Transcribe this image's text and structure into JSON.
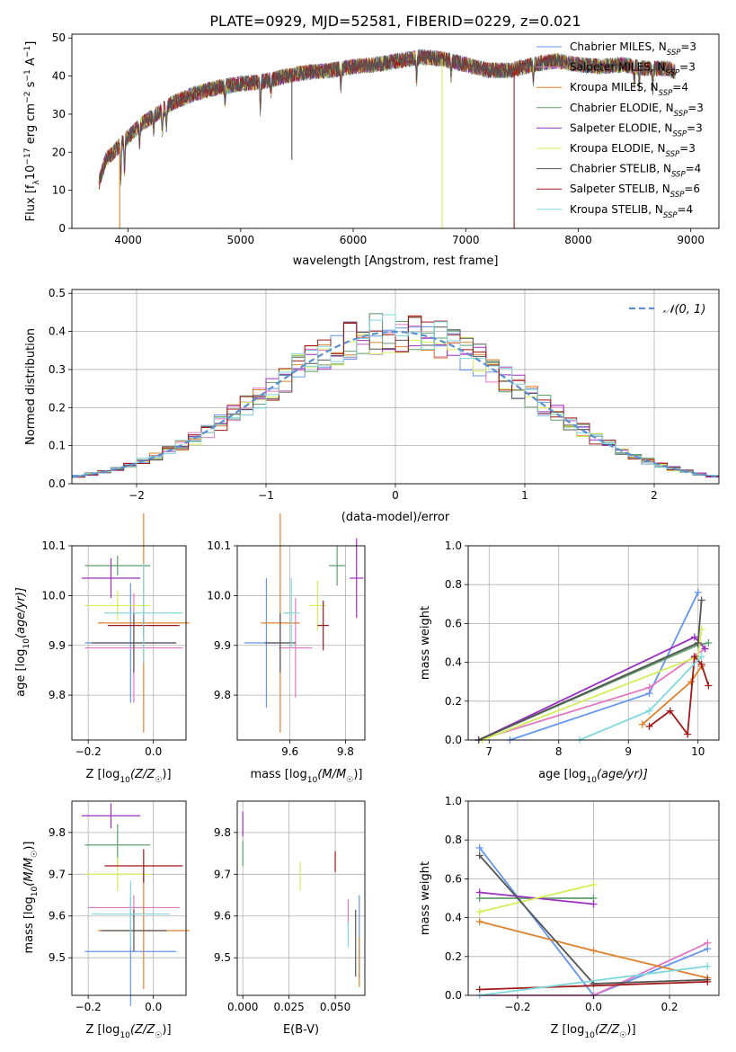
{
  "page_title": "PLATE=0929, MJD=52581, FIBERID=0229, z=0.021",
  "colors": {
    "chabrier_miles": "#6495ED",
    "salpeter_miles": "#E377C2",
    "kroupa_miles": "#E0812C",
    "chabrier_elodie": "#5F9F6B",
    "salpeter_elodie": "#9B30C0",
    "kroupa_elodie": "#D4EE58",
    "chabrier_stelib": "#555555",
    "salpeter_stelib": "#A01818",
    "kroupa_stelib": "#80D8DC",
    "normal": "#5B8FD0"
  },
  "legend": {
    "series": [
      {
        "name": "Chabrier MILES, N",
        "sub": "SSP",
        "tail": "=3",
        "color_key": "chabrier_miles"
      },
      {
        "name": "Salpeter MILES, N",
        "sub": "SSP",
        "tail": "=3",
        "color_key": "salpeter_miles"
      },
      {
        "name": "Kroupa MILES, N",
        "sub": "SSP",
        "tail": "=4",
        "color_key": "kroupa_miles"
      },
      {
        "name": "Chabrier ELODIE, N",
        "sub": "SSP",
        "tail": "=3",
        "color_key": "chabrier_elodie"
      },
      {
        "name": "Salpeter ELODIE, N",
        "sub": "SSP",
        "tail": "=3",
        "color_key": "salpeter_elodie"
      },
      {
        "name": "Kroupa ELODIE, N",
        "sub": "SSP",
        "tail": "=3",
        "color_key": "kroupa_elodie"
      },
      {
        "name": "Chabrier STELIB, N",
        "sub": "SSP",
        "tail": "=4",
        "color_key": "chabrier_stelib"
      },
      {
        "name": "Salpeter STELIB, N",
        "sub": "SSP",
        "tail": "=6",
        "color_key": "salpeter_stelib"
      },
      {
        "name": "Kroupa STELIB, N",
        "sub": "SSP",
        "tail": "=4",
        "color_key": "kroupa_stelib"
      }
    ],
    "normal_label": "𝒩(0, 1)"
  },
  "chart_data": [
    {
      "id": "spectrum",
      "type": "line",
      "xlabel": "wavelength [Angstrom, rest frame]",
      "ylabel": {
        "a": "Flux [f",
        "b": "λ",
        "c": "10",
        "d": "−17",
        "e": " erg cm",
        "f": "−2",
        "g": " s",
        "h": "−1",
        "i": " A",
        "j": "−1",
        "k": "]"
      },
      "xlim": [
        3500,
        9250
      ],
      "ylim": [
        0,
        51
      ],
      "xticks": [
        4000,
        5000,
        6000,
        7000,
        8000,
        9000
      ],
      "yticks": [
        0,
        10,
        20,
        30,
        40,
        50
      ],
      "continuum": [
        [
          3740,
          12
        ],
        [
          3800,
          18
        ],
        [
          3900,
          21
        ],
        [
          4000,
          24
        ],
        [
          4100,
          27
        ],
        [
          4200,
          29
        ],
        [
          4300,
          31
        ],
        [
          4400,
          33
        ],
        [
          4600,
          35.5
        ],
        [
          4800,
          37
        ],
        [
          5000,
          38
        ],
        [
          5200,
          38.5
        ],
        [
          5400,
          40
        ],
        [
          5600,
          41
        ],
        [
          5800,
          41.5
        ],
        [
          6000,
          42.5
        ],
        [
          6200,
          43
        ],
        [
          6400,
          44
        ],
        [
          6600,
          45
        ],
        [
          6800,
          44.5
        ],
        [
          7000,
          43
        ],
        [
          7200,
          41.5
        ],
        [
          7400,
          41.5
        ],
        [
          7600,
          43
        ],
        [
          7800,
          44
        ],
        [
          8000,
          43
        ],
        [
          8200,
          42.5
        ],
        [
          8400,
          43
        ],
        [
          8600,
          42
        ],
        [
          8800,
          42
        ],
        [
          8860,
          41
        ]
      ],
      "absorption": [
        [
          3934,
          9
        ],
        [
          3968,
          8
        ],
        [
          4102,
          5
        ],
        [
          4227,
          4
        ],
        [
          4304,
          6
        ],
        [
          4340,
          5
        ],
        [
          4861,
          4
        ],
        [
          5175,
          7
        ],
        [
          5270,
          3
        ],
        [
          5890,
          5
        ],
        [
          6563,
          6
        ],
        [
          6870,
          4
        ],
        [
          7600,
          4
        ],
        [
          8498,
          4
        ],
        [
          8542,
          5
        ],
        [
          8662,
          5
        ]
      ],
      "spikes": [
        {
          "x": 3925,
          "ymin": 0,
          "color_key": "kroupa_miles"
        },
        {
          "x": 5455,
          "ymin": 18,
          "color_key": "chabrier_stelib"
        },
        {
          "x": 6790,
          "ymin": 0,
          "color_key": "kroupa_elodie"
        },
        {
          "x": 7430,
          "ymin": 0,
          "color_key": "salpeter_stelib"
        }
      ]
    },
    {
      "id": "residuals",
      "type": "step",
      "xlabel": "(data-model)/error",
      "ylabel": "Normed distribution",
      "xlim": [
        -2.5,
        2.5
      ],
      "ylim": [
        0,
        0.51
      ],
      "xticks": [
        -2,
        -1,
        0,
        1,
        2
      ],
      "xticklabels": [
        "−2",
        "−1",
        "0",
        "1",
        "2"
      ],
      "yticks": [
        0,
        0.1,
        0.2,
        0.3,
        0.4,
        0.5
      ],
      "yticklabels": [
        "0.0",
        "0.1",
        "0.2",
        "0.3",
        "0.4",
        "0.5"
      ],
      "bin_width": 0.1,
      "normal": {
        "mu": 0,
        "sigma": 1
      }
    },
    {
      "id": "age_vs_Z",
      "type": "errorbar",
      "xlabel": {
        "a": "Z [log",
        "b": "10",
        "c": "(Z/Z",
        "d": "☉",
        "e": ")]"
      },
      "ylabel": {
        "a": "age  [log",
        "b": "10",
        "c": "(age/yr)]"
      },
      "xlim": [
        -0.25,
        0.1
      ],
      "ylim": [
        9.71,
        10.1
      ],
      "xticks": [
        -0.2,
        0.0
      ],
      "xticklabels": [
        "−0.2",
        "0.0"
      ],
      "yticks": [
        9.8,
        9.9,
        10.0,
        10.1
      ],
      "yticklabels": [
        "9.8",
        "9.9",
        "10.0",
        "10.1"
      ],
      "points": [
        {
          "color_key": "chabrier_miles",
          "x": -0.07,
          "xerr": 0.14,
          "y": 9.905,
          "yerr": 0.12
        },
        {
          "color_key": "salpeter_miles",
          "x": -0.06,
          "xerr": 0.15,
          "y": 9.895,
          "yerr": 0.11
        },
        {
          "color_key": "kroupa_miles",
          "x": -0.03,
          "xerr": 0.14,
          "y": 9.945,
          "yerr": 0.22
        },
        {
          "color_key": "chabrier_elodie",
          "x": -0.11,
          "xerr": 0.1,
          "y": 10.06,
          "yerr": 0.02
        },
        {
          "color_key": "salpeter_elodie",
          "x": -0.13,
          "xerr": 0.09,
          "y": 10.035,
          "yerr": 0.04
        },
        {
          "color_key": "kroupa_elodie",
          "x": -0.11,
          "xerr": 0.1,
          "y": 9.98,
          "yerr": 0.03
        },
        {
          "color_key": "chabrier_stelib",
          "x": -0.06,
          "xerr": 0.13,
          "y": 9.905,
          "yerr": 0.06
        },
        {
          "color_key": "salpeter_stelib",
          "x": -0.03,
          "xerr": 0.11,
          "y": 9.94,
          "yerr": 0.02
        },
        {
          "color_key": "kroupa_stelib",
          "x": -0.03,
          "xerr": 0.12,
          "y": 9.965,
          "yerr": 0.1
        }
      ]
    },
    {
      "id": "age_vs_mass",
      "type": "errorbar",
      "xlabel": {
        "a": "mass [log",
        "b": "10",
        "c": "(M/M",
        "d": "☉",
        "e": ")]"
      },
      "ylabel": "",
      "xlim": [
        9.41,
        9.87
      ],
      "ylim": [
        9.71,
        10.1
      ],
      "xticks": [
        9.6,
        9.8
      ],
      "xticklabels": [
        "9.6",
        "9.8"
      ],
      "yticks": [
        9.8,
        9.9,
        10.0,
        10.1
      ],
      "yticklabels": [
        "9.8",
        "9.9",
        "10.0",
        "10.1"
      ],
      "points": [
        {
          "color_key": "chabrier_miles",
          "x": 9.515,
          "xerr": 0.08,
          "y": 9.905,
          "yerr": 0.13
        },
        {
          "color_key": "salpeter_miles",
          "x": 9.62,
          "xerr": 0.06,
          "y": 9.895,
          "yerr": 0.1
        },
        {
          "color_key": "kroupa_miles",
          "x": 9.565,
          "xerr": 0.07,
          "y": 9.945,
          "yerr": 0.22
        },
        {
          "color_key": "chabrier_elodie",
          "x": 9.77,
          "xerr": 0.03,
          "y": 10.06,
          "yerr": 0.04
        },
        {
          "color_key": "salpeter_elodie",
          "x": 9.84,
          "xerr": 0.025,
          "y": 10.035,
          "yerr": 0.08
        },
        {
          "color_key": "kroupa_elodie",
          "x": 9.7,
          "xerr": 0.03,
          "y": 9.98,
          "yerr": 0.05
        },
        {
          "color_key": "chabrier_stelib",
          "x": 9.565,
          "xerr": 0.055,
          "y": 9.905,
          "yerr": 0.06
        },
        {
          "color_key": "salpeter_stelib",
          "x": 9.72,
          "xerr": 0.02,
          "y": 9.94,
          "yerr": 0.05
        },
        {
          "color_key": "kroupa_stelib",
          "x": 9.605,
          "xerr": 0.03,
          "y": 9.965,
          "yerr": 0.07
        }
      ]
    },
    {
      "id": "weight_vs_age",
      "type": "line",
      "xlabel": {
        "a": "age  [log",
        "b": "10",
        "c": "(age/yr)]"
      },
      "ylabel": "mass weight",
      "xlim": [
        6.7,
        10.3
      ],
      "ylim": [
        0,
        1.0
      ],
      "xticks": [
        7,
        8,
        9,
        10
      ],
      "xticklabels": [
        "7",
        "8",
        "9",
        "10"
      ],
      "yticks": [
        0,
        0.2,
        0.4,
        0.6,
        0.8,
        1.0
      ],
      "yticklabels": [
        "0.0",
        "0.2",
        "0.4",
        "0.6",
        "0.8",
        "1.0"
      ],
      "series": [
        {
          "color_key": "chabrier_miles",
          "x": [
            7.3,
            9.3,
            10.0
          ],
          "y": [
            0.0,
            0.24,
            0.76
          ]
        },
        {
          "color_key": "salpeter_miles",
          "x": [
            6.85,
            9.3,
            10.1
          ],
          "y": [
            0.0,
            0.27,
            0.47
          ]
        },
        {
          "color_key": "kroupa_miles",
          "x": [
            9.2,
            9.9,
            10.05
          ],
          "y": [
            0.08,
            0.3,
            0.38
          ]
        },
        {
          "color_key": "chabrier_elodie",
          "x": [
            6.85,
            10.0,
            10.15
          ],
          "y": [
            0.0,
            0.49,
            0.5
          ]
        },
        {
          "color_key": "salpeter_elodie",
          "x": [
            6.85,
            9.95,
            10.1
          ],
          "y": [
            0.0,
            0.53,
            0.47
          ]
        },
        {
          "color_key": "kroupa_elodie",
          "x": [
            6.9,
            10.0,
            10.05
          ],
          "y": [
            0.0,
            0.43,
            0.57
          ]
        },
        {
          "color_key": "chabrier_stelib",
          "x": [
            6.85,
            10.0,
            10.05
          ],
          "y": [
            0.0,
            0.5,
            0.72
          ]
        },
        {
          "color_key": "salpeter_stelib",
          "x": [
            9.3,
            9.6,
            9.85,
            9.95,
            10.05,
            10.15
          ],
          "y": [
            0.07,
            0.15,
            0.03,
            0.43,
            0.39,
            0.28
          ]
        },
        {
          "color_key": "kroupa_stelib",
          "x": [
            8.3,
            9.3,
            10.05
          ],
          "y": [
            0.0,
            0.15,
            0.43
          ]
        }
      ]
    },
    {
      "id": "mass_vs_Z",
      "type": "errorbar",
      "xlabel": {
        "a": "Z [log",
        "b": "10",
        "c": "(Z/Z",
        "d": "☉",
        "e": ")]"
      },
      "ylabel": {
        "a": "mass [log",
        "b": "10",
        "c": "(M/M",
        "d": "☉",
        "e": ")]"
      },
      "xlim": [
        -0.25,
        0.1
      ],
      "ylim": [
        9.41,
        9.875
      ],
      "xticks": [
        -0.2,
        0.0
      ],
      "xticklabels": [
        "−0.2",
        "0.0"
      ],
      "yticks": [
        9.5,
        9.6,
        9.7,
        9.8
      ],
      "yticklabels": [
        "9.5",
        "9.6",
        "9.7",
        "9.8"
      ],
      "points": [
        {
          "color_key": "chabrier_miles",
          "x": -0.07,
          "xerr": 0.14,
          "y": 9.515,
          "yerr": 0.13
        },
        {
          "color_key": "salpeter_miles",
          "x": -0.06,
          "xerr": 0.14,
          "y": 9.62,
          "yerr": 0.03
        },
        {
          "color_key": "kroupa_miles",
          "x": -0.03,
          "xerr": 0.14,
          "y": 9.565,
          "yerr": 0.14
        },
        {
          "color_key": "chabrier_elodie",
          "x": -0.11,
          "xerr": 0.1,
          "y": 9.77,
          "yerr": 0.05
        },
        {
          "color_key": "salpeter_elodie",
          "x": -0.13,
          "xerr": 0.09,
          "y": 9.84,
          "yerr": 0.03
        },
        {
          "color_key": "kroupa_elodie",
          "x": -0.11,
          "xerr": 0.1,
          "y": 9.7,
          "yerr": 0.04
        },
        {
          "color_key": "chabrier_stelib",
          "x": -0.06,
          "xerr": 0.1,
          "y": 9.565,
          "yerr": 0.05
        },
        {
          "color_key": "salpeter_stelib",
          "x": -0.03,
          "xerr": 0.12,
          "y": 9.72,
          "yerr": 0.04
        },
        {
          "color_key": "kroupa_stelib",
          "x": -0.07,
          "xerr": 0.12,
          "y": 9.605,
          "yerr": 0.08
        }
      ]
    },
    {
      "id": "mass_vs_ebv",
      "type": "errorbar",
      "xlabel": "E(B-V)",
      "ylabel": "",
      "xlim": [
        -0.003,
        0.066
      ],
      "ylim": [
        9.41,
        9.875
      ],
      "xticks": [
        0.0,
        0.025,
        0.05
      ],
      "xticklabels": [
        "0.000",
        "0.025",
        "0.050"
      ],
      "yticks": [
        9.5,
        9.6,
        9.7,
        9.8
      ],
      "yticklabels": [
        "9.5",
        "9.6",
        "9.7",
        "9.8"
      ],
      "points": [
        {
          "color_key": "chabrier_miles",
          "x": 0.063,
          "xerr": 0,
          "y": 9.55,
          "yerr": 0.1
        },
        {
          "color_key": "salpeter_miles",
          "x": 0.057,
          "xerr": 0,
          "y": 9.6,
          "yerr": 0.04
        },
        {
          "color_key": "kroupa_miles",
          "x": 0.063,
          "xerr": 0,
          "y": 9.49,
          "yerr": 0.06
        },
        {
          "color_key": "chabrier_elodie",
          "x": 0.0,
          "xerr": 0,
          "y": 9.75,
          "yerr": 0.03
        },
        {
          "color_key": "salpeter_elodie",
          "x": 0.0,
          "xerr": 0,
          "y": 9.82,
          "yerr": 0.03
        },
        {
          "color_key": "kroupa_elodie",
          "x": 0.031,
          "xerr": 0,
          "y": 9.695,
          "yerr": 0.035
        },
        {
          "color_key": "chabrier_stelib",
          "x": 0.061,
          "xerr": 0,
          "y": 9.535,
          "yerr": 0.08
        },
        {
          "color_key": "salpeter_stelib",
          "x": 0.05,
          "xerr": 0,
          "y": 9.73,
          "yerr": 0.025
        },
        {
          "color_key": "kroupa_stelib",
          "x": 0.057,
          "xerr": 0,
          "y": 9.555,
          "yerr": 0.03
        }
      ]
    },
    {
      "id": "weight_vs_Z",
      "type": "line",
      "xlabel": {
        "a": "Z [log",
        "b": "10",
        "c": "(Z/Z",
        "d": "☉",
        "e": ")]"
      },
      "ylabel": "mass weight",
      "xlim": [
        -0.33,
        0.33
      ],
      "ylim": [
        0,
        1.0
      ],
      "xticks": [
        -0.2,
        0.0,
        0.2
      ],
      "xticklabels": [
        "−0.2",
        "0.0",
        "0.2"
      ],
      "yticks": [
        0,
        0.2,
        0.4,
        0.6,
        0.8,
        1.0
      ],
      "yticklabels": [
        "0.0",
        "0.2",
        "0.4",
        "0.6",
        "0.8",
        "1.0"
      ],
      "series": [
        {
          "color_key": "chabrier_miles",
          "x": [
            -0.3,
            0.0,
            0.3
          ],
          "y": [
            0.76,
            0.0,
            0.24
          ]
        },
        {
          "color_key": "salpeter_miles",
          "x": [
            -0.3,
            0.0,
            0.3
          ],
          "y": [
            0.0,
            0.0,
            0.27
          ]
        },
        {
          "color_key": "kroupa_miles",
          "x": [
            -0.3,
            0.0,
            0.3
          ],
          "y": [
            0.38,
            0.23,
            0.09
          ]
        },
        {
          "color_key": "chabrier_elodie",
          "x": [
            -0.3,
            0.0
          ],
          "y": [
            0.5,
            0.5
          ]
        },
        {
          "color_key": "salpeter_elodie",
          "x": [
            -0.3,
            0.0
          ],
          "y": [
            0.53,
            0.47
          ]
        },
        {
          "color_key": "kroupa_elodie",
          "x": [
            -0.3,
            0.0
          ],
          "y": [
            0.43,
            0.57
          ]
        },
        {
          "color_key": "chabrier_stelib",
          "x": [
            -0.3,
            0.0,
            0.3
          ],
          "y": [
            0.72,
            0.06,
            0.08
          ]
        },
        {
          "color_key": "salpeter_stelib",
          "x": [
            -0.3,
            0.3
          ],
          "y": [
            0.03,
            0.07
          ]
        },
        {
          "color_key": "kroupa_stelib",
          "x": [
            -0.3,
            0.3
          ],
          "y": [
            0.0,
            0.15
          ]
        }
      ]
    }
  ]
}
